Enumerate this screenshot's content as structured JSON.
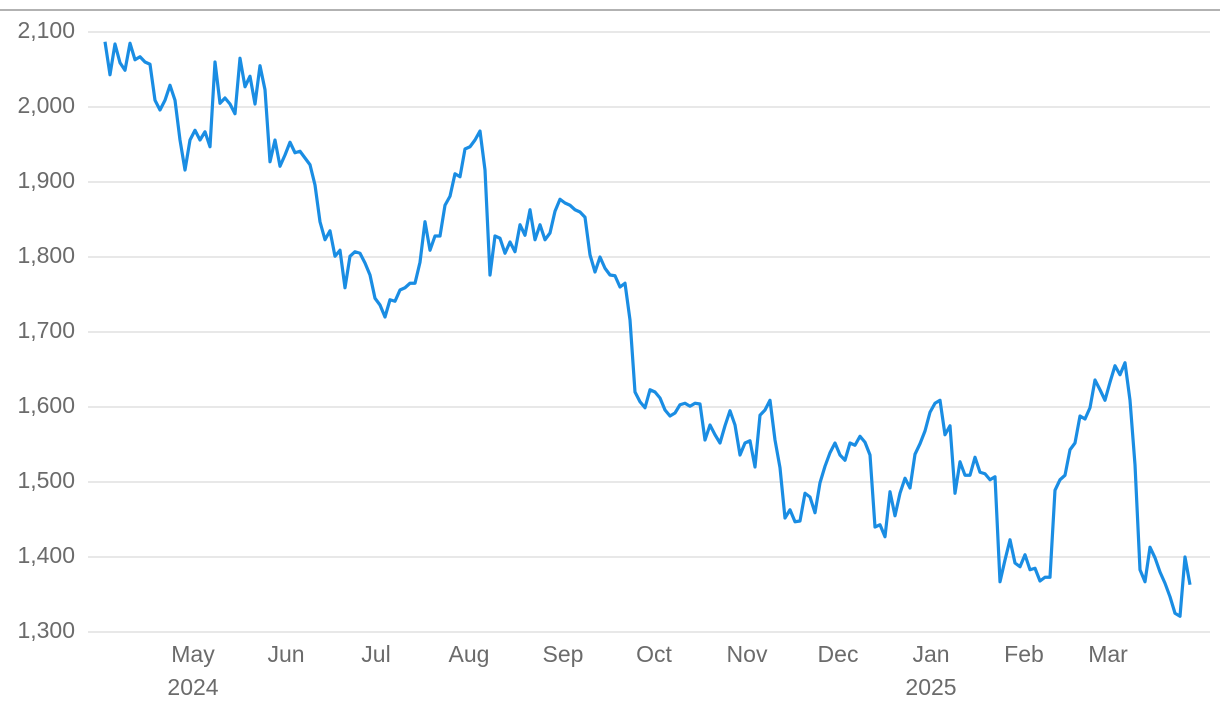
{
  "chart_data": {
    "type": "line",
    "xticks": [
      "May",
      "Jun",
      "Jul",
      "Aug",
      "Sep",
      "Oct",
      "Nov",
      "Dec",
      "Jan",
      "Feb",
      "Mar"
    ],
    "xtick_years": [
      "2024",
      null,
      null,
      null,
      null,
      null,
      null,
      null,
      "2025",
      null,
      null
    ],
    "ylim": [
      1300,
      2100
    ],
    "yticks": [
      {
        "value": 1300,
        "label": "1,300"
      },
      {
        "value": 1400,
        "label": "1,400"
      },
      {
        "value": 1500,
        "label": "1,500"
      },
      {
        "value": 1600,
        "label": "1,600"
      },
      {
        "value": 1700,
        "label": "1,700"
      },
      {
        "value": 1800,
        "label": "1,800"
      },
      {
        "value": 1900,
        "label": "1,900"
      },
      {
        "value": 2000,
        "label": "2,000"
      },
      {
        "value": 2100,
        "label": "2,100"
      }
    ],
    "grid": true,
    "series": [
      {
        "color": "#1a8de3",
        "values": [
          2087,
          2043,
          2084,
          2059,
          2049,
          2085,
          2063,
          2067,
          2060,
          2057,
          2009,
          1996,
          2009,
          2029,
          2009,
          1956,
          1916,
          1956,
          1969,
          1956,
          1967,
          1947,
          2060,
          2005,
          2012,
          2004,
          1991,
          2065,
          2027,
          2041,
          2004,
          2055,
          2023,
          1927,
          1956,
          1921,
          1936,
          1953,
          1939,
          1941,
          1932,
          1923,
          1896,
          1847,
          1823,
          1835,
          1801,
          1809,
          1759,
          1801,
          1807,
          1805,
          1792,
          1776,
          1745,
          1736,
          1720,
          1743,
          1741,
          1756,
          1759,
          1765,
          1765,
          1793,
          1847,
          1809,
          1828,
          1828,
          1869,
          1881,
          1911,
          1907,
          1944,
          1947,
          1956,
          1968,
          1916,
          1776,
          1828,
          1825,
          1805,
          1820,
          1807,
          1843,
          1829,
          1863,
          1823,
          1843,
          1823,
          1832,
          1861,
          1877,
          1872,
          1869,
          1863,
          1860,
          1853,
          1803,
          1780,
          1800,
          1785,
          1776,
          1775,
          1760,
          1765,
          1716,
          1620,
          1607,
          1599,
          1623,
          1620,
          1612,
          1596,
          1588,
          1592,
          1603,
          1605,
          1601,
          1605,
          1604,
          1556,
          1576,
          1563,
          1552,
          1575,
          1595,
          1576,
          1536,
          1552,
          1555,
          1520,
          1589,
          1596,
          1609,
          1556,
          1519,
          1452,
          1463,
          1447,
          1448,
          1485,
          1480,
          1459,
          1499,
          1521,
          1539,
          1552,
          1536,
          1529,
          1552,
          1549,
          1561,
          1553,
          1536,
          1440,
          1443,
          1427,
          1487,
          1455,
          1485,
          1505,
          1492,
          1537,
          1551,
          1568,
          1593,
          1605,
          1609,
          1563,
          1575,
          1485,
          1527,
          1509,
          1509,
          1533,
          1513,
          1511,
          1503,
          1507,
          1367,
          1396,
          1423,
          1392,
          1387,
          1403,
          1383,
          1385,
          1368,
          1373,
          1373,
          1489,
          1503,
          1509,
          1543,
          1552,
          1588,
          1584,
          1599,
          1636,
          1623,
          1609,
          1633,
          1655,
          1643,
          1659,
          1609,
          1523,
          1383,
          1367,
          1413,
          1399,
          1380,
          1365,
          1347,
          1325,
          1321,
          1400,
          1363
        ]
      }
    ]
  }
}
